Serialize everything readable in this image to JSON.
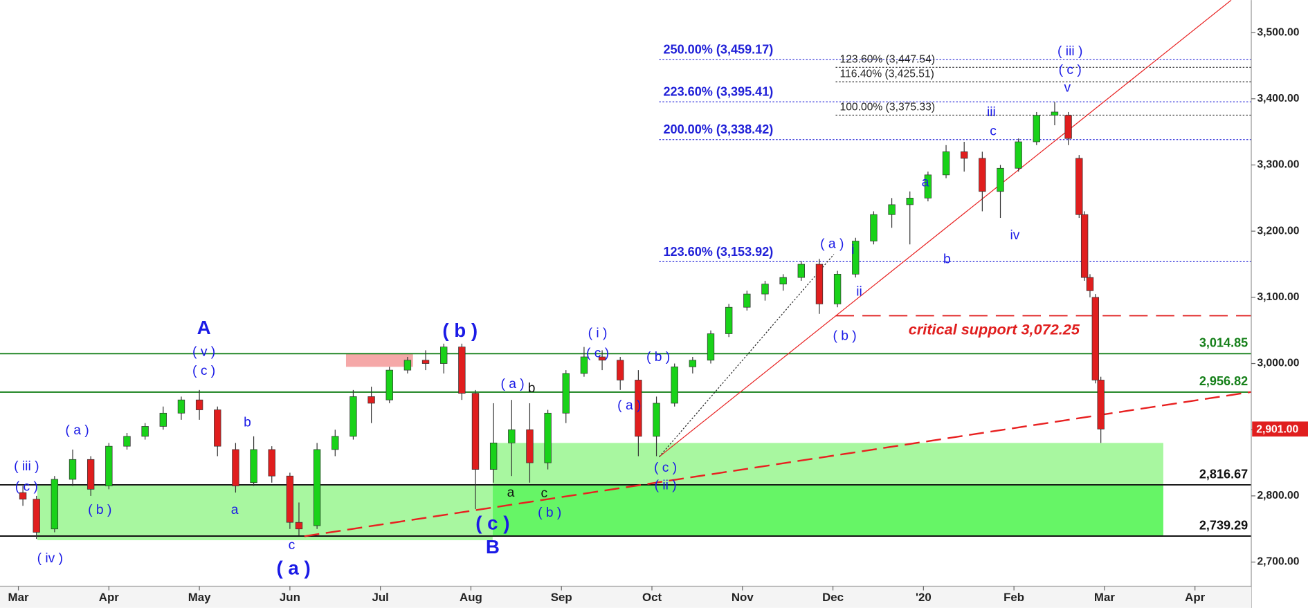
{
  "chart_data": {
    "type": "candlestick",
    "up_color": "#19d219",
    "down_color": "#e01e1e",
    "xlim": [
      -0.203,
      13.622
    ],
    "ylim": [
      2663.5,
      3549.1
    ],
    "xticks": [
      {
        "value": 0,
        "label": "Mar"
      },
      {
        "value": 1,
        "label": "Apr"
      },
      {
        "value": 2,
        "label": "May"
      },
      {
        "value": 3,
        "label": "Jun"
      },
      {
        "value": 4,
        "label": "Jul"
      },
      {
        "value": 5,
        "label": "Aug"
      },
      {
        "value": 6,
        "label": "Sep"
      },
      {
        "value": 7,
        "label": "Oct"
      },
      {
        "value": 8,
        "label": "Nov"
      },
      {
        "value": 9,
        "label": "Dec"
      },
      {
        "value": 10,
        "label": "'20"
      },
      {
        "value": 11,
        "label": "Feb"
      },
      {
        "value": 12,
        "label": "Mar"
      },
      {
        "value": 13,
        "label": "Apr"
      }
    ],
    "yticks": [
      {
        "value": 2700,
        "label": "2,700.00"
      },
      {
        "value": 2800,
        "label": "2,800.00"
      },
      {
        "value": 2900,
        "label": "2,900.00"
      },
      {
        "value": 3000,
        "label": "3,000.00"
      },
      {
        "value": 3100,
        "label": "3,100.00"
      },
      {
        "value": 3200,
        "label": "3,200.00"
      },
      {
        "value": 3300,
        "label": "3,300.00"
      },
      {
        "value": 3400,
        "label": "3,400.00"
      },
      {
        "value": 3500,
        "label": "3,500.00"
      }
    ],
    "x": [
      0.05,
      0.2,
      0.4,
      0.6,
      0.8,
      1.0,
      1.2,
      1.4,
      1.6,
      1.8,
      2.0,
      2.2,
      2.4,
      2.6,
      2.8,
      3.0,
      3.1,
      3.3,
      3.5,
      3.7,
      3.9,
      4.1,
      4.3,
      4.5,
      4.7,
      4.9,
      5.05,
      5.25,
      5.45,
      5.65,
      5.85,
      6.05,
      6.25,
      6.45,
      6.65,
      6.85,
      7.05,
      7.25,
      7.45,
      7.65,
      7.85,
      8.05,
      8.25,
      8.45,
      8.65,
      8.85,
      9.05,
      9.25,
      9.45,
      9.65,
      9.85,
      10.05,
      10.25,
      10.45,
      10.65,
      10.85,
      11.05,
      11.25,
      11.45,
      11.6,
      11.72,
      11.78,
      11.84,
      11.9,
      11.96
    ],
    "open": [
      2805,
      2795,
      2750,
      2825,
      2855,
      2815,
      2875,
      2890,
      2905,
      2925,
      2945,
      2930,
      2870,
      2820,
      2870,
      2830,
      2760,
      2755,
      2870,
      2890,
      2950,
      2945,
      2990,
      3005,
      3000,
      3025,
      2955,
      2840,
      2880,
      2900,
      2850,
      2925,
      2985,
      3010,
      3005,
      2975,
      2890,
      2940,
      2995,
      3005,
      3045,
      3085,
      3105,
      3120,
      3130,
      3150,
      3090,
      3135,
      3185,
      3225,
      3240,
      3250,
      3285,
      3320,
      3310,
      3260,
      3295,
      3335,
      3375,
      3375,
      3310,
      3225,
      3130,
      3100,
      2975
    ],
    "high": [
      2815,
      2800,
      2830,
      2870,
      2860,
      2880,
      2895,
      2910,
      2935,
      2950,
      2960,
      2935,
      2880,
      2890,
      2875,
      2835,
      2790,
      2880,
      2900,
      2960,
      2965,
      2995,
      3010,
      3020,
      3030,
      3030,
      2960,
      2940,
      2945,
      2940,
      2930,
      2990,
      3025,
      3020,
      3010,
      2990,
      2950,
      3000,
      3010,
      3050,
      3090,
      3110,
      3125,
      3135,
      3155,
      3158,
      3140,
      3190,
      3230,
      3250,
      3260,
      3290,
      3330,
      3335,
      3320,
      3300,
      3340,
      3380,
      3395,
      3380,
      3315,
      3230,
      3135,
      3105,
      2980
    ],
    "low": [
      2785,
      2735,
      2745,
      2815,
      2800,
      2810,
      2870,
      2885,
      2900,
      2915,
      2915,
      2860,
      2805,
      2815,
      2820,
      2750,
      2740,
      2750,
      2860,
      2885,
      2910,
      2940,
      2985,
      2990,
      2985,
      2945,
      2780,
      2820,
      2830,
      2820,
      2840,
      2910,
      2980,
      2990,
      2960,
      2860,
      2860,
      2935,
      2985,
      3000,
      3040,
      3080,
      3095,
      3110,
      3125,
      3075,
      3085,
      3130,
      3180,
      3205,
      3180,
      3245,
      3280,
      3290,
      3230,
      3220,
      3290,
      3330,
      3360,
      3330,
      3220,
      3125,
      3100,
      2970,
      2880
    ],
    "close": [
      2795,
      2745,
      2825,
      2855,
      2810,
      2875,
      2890,
      2905,
      2925,
      2945,
      2930,
      2875,
      2815,
      2870,
      2830,
      2760,
      2750,
      2870,
      2890,
      2950,
      2940,
      2990,
      3005,
      3000,
      3025,
      2955,
      2840,
      2880,
      2900,
      2850,
      2925,
      2985,
      3010,
      3005,
      2975,
      2890,
      2940,
      2995,
      3005,
      3045,
      3085,
      3105,
      3120,
      3130,
      3150,
      3090,
      3135,
      3185,
      3225,
      3240,
      3250,
      3285,
      3320,
      3310,
      3260,
      3295,
      3335,
      3375,
      3380,
      3340,
      3225,
      3130,
      3110,
      2975,
      2901
    ],
    "last_price": {
      "value": 2901,
      "label": "2,901.00",
      "color": "#e01e1e"
    },
    "zones": [
      {
        "x": [
          0.21,
          5.24
        ],
        "y": [
          2733,
          2816.67
        ],
        "color": "#a8f7a0"
      },
      {
        "x": [
          5.24,
          12.65
        ],
        "y": [
          2816.67,
          2880
        ],
        "color": "#a8f7a0"
      },
      {
        "x": [
          5.24,
          12.65
        ],
        "y": [
          2739.29,
          2816.67
        ],
        "color": "#66f566"
      },
      {
        "x": [
          3.62,
          4.36
        ],
        "y": [
          2995,
          3015
        ],
        "color": "#f5a8a8"
      }
    ],
    "levels": [
      {
        "value": 3459.17,
        "label": "250.00% (3,459.17)",
        "color": "#2020d8",
        "style": "dotted",
        "from": 7.08
      },
      {
        "value": 3447.54,
        "label": "123.60% (3,447.54)",
        "color": "#222222",
        "style": "dotted",
        "from": 9.03
      },
      {
        "value": 3425.51,
        "label": "116.40% (3,425.51)",
        "color": "#222222",
        "style": "dotted",
        "from": 9.03
      },
      {
        "value": 3395.41,
        "label": "223.60% (3,395.41)",
        "color": "#2020d8",
        "style": "dotted",
        "from": 7.08
      },
      {
        "value": 3375.33,
        "label": "100.00% (3,375.33)",
        "color": "#222222",
        "style": "dotted",
        "from": 9.03
      },
      {
        "value": 3338.42,
        "label": "200.00% (3,338.42)",
        "color": "#2020d8",
        "style": "dotted",
        "from": 7.08
      },
      {
        "value": 3153.92,
        "label": "123.60% (3,153.92)",
        "color": "#2020d8",
        "style": "dotted",
        "from": 7.08
      },
      {
        "value": 3072.25,
        "color": "#e01e1e",
        "style": "dashed",
        "from": 9.03
      },
      {
        "value": 3014.85,
        "label": "3,014.85",
        "color": "#16801a",
        "style": "solid"
      },
      {
        "value": 2956.82,
        "label": "2,956.82",
        "color": "#16801a",
        "style": "solid"
      },
      {
        "value": 2816.67,
        "label": "2,816.67",
        "color": "#111111",
        "style": "solid"
      },
      {
        "value": 2739.29,
        "label": "2,739.29",
        "color": "#111111",
        "style": "solid"
      }
    ],
    "trendlines": [
      {
        "x": [
          7.08,
          13.4
        ],
        "y": [
          2859,
          3549
        ],
        "color": "#e82020",
        "style": "solid"
      },
      {
        "x": [
          3.16,
          13.62
        ],
        "y": [
          2739,
          2957
        ],
        "color": "#e82020",
        "style": "dashed"
      },
      {
        "x": [
          7.08,
          9.01
        ],
        "y": [
          2859,
          3165
        ],
        "color": "#222222",
        "style": "dotted"
      }
    ],
    "notes": [
      {
        "text": "critical support 3,072.25",
        "x": 10.78,
        "y": 3050,
        "color": "#e01e1e"
      }
    ],
    "wave_labels_large": [
      {
        "text": "A",
        "x": 2.05,
        "y": 3052,
        "color": "#1a1ae6"
      },
      {
        "text": "( a )",
        "x": 3.04,
        "y": 2689,
        "color": "#1a1ae6"
      },
      {
        "text": "( b )",
        "x": 4.88,
        "y": 3048,
        "color": "#1a1ae6"
      },
      {
        "text": "( c )",
        "x": 5.24,
        "y": 2757,
        "color": "#1a1ae6"
      },
      {
        "text": "B",
        "x": 5.24,
        "y": 2721,
        "color": "#1a1ae6"
      }
    ],
    "wave_labels": [
      {
        "text": "( iii )",
        "x": 0.09,
        "y": 2844,
        "color": "#1a1ae6"
      },
      {
        "text": "( c )",
        "x": 0.09,
        "y": 2813,
        "color": "#1a1ae6"
      },
      {
        "text": "( iv )",
        "x": 0.35,
        "y": 2705,
        "color": "#1a1ae6"
      },
      {
        "text": "( a )",
        "x": 0.65,
        "y": 2898,
        "color": "#1a1ae6"
      },
      {
        "text": "( b )",
        "x": 0.9,
        "y": 2778,
        "color": "#1a1ae6"
      },
      {
        "text": "( v )",
        "x": 2.05,
        "y": 3017,
        "color": "#1a1ae6"
      },
      {
        "text": "( c )",
        "x": 2.05,
        "y": 2988,
        "color": "#1a1ae6"
      },
      {
        "text": "b",
        "x": 2.53,
        "y": 2910,
        "color": "#1a1ae6"
      },
      {
        "text": "a",
        "x": 2.39,
        "y": 2778,
        "color": "#1a1ae6"
      },
      {
        "text": "c",
        "x": 3.02,
        "y": 2725,
        "color": "#1a1ae6"
      },
      {
        "text": "( a )",
        "x": 5.46,
        "y": 2968,
        "color": "#1a1ae6"
      },
      {
        "text": "b",
        "x": 5.67,
        "y": 2962,
        "color": "#111111"
      },
      {
        "text": "a",
        "x": 5.44,
        "y": 2804,
        "color": "#111111"
      },
      {
        "text": "c",
        "x": 5.81,
        "y": 2803,
        "color": "#111111"
      },
      {
        "text": "( b )",
        "x": 5.87,
        "y": 2774,
        "color": "#1a1ae6"
      },
      {
        "text": "( i )",
        "x": 6.4,
        "y": 3045,
        "color": "#1a1ae6"
      },
      {
        "text": "( c )",
        "x": 6.4,
        "y": 3015,
        "color": "#1a1ae6"
      },
      {
        "text": "( b )",
        "x": 7.07,
        "y": 3009,
        "color": "#1a1ae6"
      },
      {
        "text": "( a )",
        "x": 6.75,
        "y": 2936,
        "color": "#1a1ae6"
      },
      {
        "text": "( c )",
        "x": 7.15,
        "y": 2842,
        "color": "#1a1ae6"
      },
      {
        "text": "( ii )",
        "x": 7.15,
        "y": 2815,
        "color": "#1a1ae6"
      },
      {
        "text": "( a )",
        "x": 8.99,
        "y": 3180,
        "color": "#1a1ae6"
      },
      {
        "text": "i",
        "x": 9.22,
        "y": 3171,
        "color": "#1a1ae6"
      },
      {
        "text": "ii",
        "x": 9.29,
        "y": 3108,
        "color": "#1a1ae6"
      },
      {
        "text": "( b )",
        "x": 9.13,
        "y": 3041,
        "color": "#1a1ae6"
      },
      {
        "text": "a",
        "x": 10.02,
        "y": 3273,
        "color": "#1a1ae6"
      },
      {
        "text": "b",
        "x": 10.26,
        "y": 3157,
        "color": "#1a1ae6"
      },
      {
        "text": "iii",
        "x": 10.75,
        "y": 3379,
        "color": "#1a1ae6"
      },
      {
        "text": "c",
        "x": 10.77,
        "y": 3350,
        "color": "#1a1ae6"
      },
      {
        "text": "iv",
        "x": 11.01,
        "y": 3193,
        "color": "#1a1ae6"
      },
      {
        "text": "( iii )",
        "x": 11.62,
        "y": 3471,
        "color": "#1a1ae6"
      },
      {
        "text": "( c )",
        "x": 11.62,
        "y": 3443,
        "color": "#1a1ae6"
      },
      {
        "text": "v",
        "x": 11.59,
        "y": 3416,
        "color": "#1a1ae6"
      }
    ]
  }
}
